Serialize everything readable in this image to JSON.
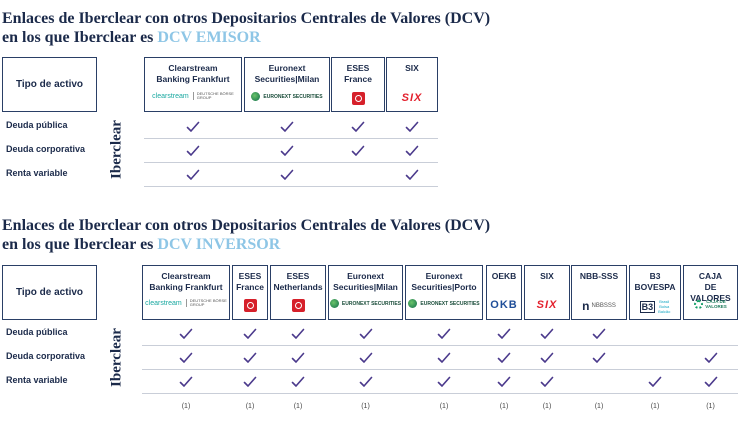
{
  "emisor": {
    "title_line1": "Enlaces de Iberclear con otros Depositarios Centrales de Valores (DCV)",
    "title_line2_prefix": "en los que Iberclear es",
    "title_line2_accent": "DCV EMISOR",
    "type_header": "Tipo de activo",
    "vertical_label": "Iberclear",
    "columns": [
      {
        "name": "Clearstream\nBanking Frankfurt",
        "logo": "clearstream-logo",
        "logo_text": "clearstream",
        "logo_sub": "DEUTSCHE BÖRSE\nGROUP"
      },
      {
        "name": "Euronext\nSecurities|Milan",
        "logo": "euronext-logo",
        "logo_text": "EURONEXT SECURITIES"
      },
      {
        "name": "ESES\nFrance",
        "logo": "eses-logo"
      },
      {
        "name": "SIX",
        "logo": "six-logo",
        "logo_text": "SIX"
      }
    ],
    "rows": [
      {
        "label": "Deuda pública",
        "checks": [
          true,
          true,
          true,
          true
        ]
      },
      {
        "label": "Deuda corporativa",
        "checks": [
          true,
          true,
          true,
          true
        ]
      },
      {
        "label": "Renta variable",
        "checks": [
          true,
          true,
          false,
          true
        ]
      }
    ]
  },
  "inversor": {
    "title_line1": "Enlaces de Iberclear con otros Depositarios Centrales de Valores (DCV)",
    "title_line2_prefix": "en los que Iberclear es",
    "title_line2_accent": "DCV INVERSOR",
    "type_header": "Tipo de activo",
    "vertical_label": "Iberclear",
    "columns": [
      {
        "name": "Clearstream\nBanking Frankfurt",
        "logo": "clearstream-logo",
        "logo_text": "clearstream",
        "logo_sub": "DEUTSCHE BÖRSE\nGROUP"
      },
      {
        "name": "ESES\nFrance",
        "logo": "eses-logo"
      },
      {
        "name": "ESES\nNetherlands",
        "logo": "eses-logo"
      },
      {
        "name": "Euronext\nSecurities|Milan",
        "logo": "euronext-logo",
        "logo_text": "EURONEXT SECURITIES"
      },
      {
        "name": "Euronext\nSecurities|Porto",
        "logo": "euronext-logo",
        "logo_text": "EURONEXT SECURITIES"
      },
      {
        "name": "OEKB",
        "logo": "oekb-logo",
        "logo_text": "OKB"
      },
      {
        "name": "SIX",
        "logo": "six-logo",
        "logo_text": "SIX"
      },
      {
        "name": "NBB-SSS",
        "logo": "nbb-logo",
        "logo_text": "NBBSSS"
      },
      {
        "name": "B3\nBOVESPA",
        "logo": "b3-logo",
        "logo_text": "B3",
        "logo_sub": "Brasil\nBolsa\nBalcão"
      },
      {
        "name": "CAJA\nDE VALORES",
        "logo": "caja-logo",
        "logo_text": "CAJA DE\nVALORES"
      }
    ],
    "rows": [
      {
        "label": "Deuda pública",
        "checks": [
          true,
          true,
          true,
          true,
          true,
          true,
          true,
          true,
          false,
          false
        ]
      },
      {
        "label": "Deuda corporativa",
        "checks": [
          true,
          true,
          true,
          true,
          true,
          true,
          true,
          true,
          false,
          true
        ]
      },
      {
        "label": "Renta variable",
        "checks": [
          true,
          true,
          true,
          true,
          true,
          true,
          true,
          false,
          true,
          true
        ]
      }
    ],
    "notes": [
      "(1)",
      "(1)",
      "(1)",
      "(1)",
      "(1)",
      "(1)",
      "(1)",
      "(1)",
      "(1)",
      "(1)"
    ]
  },
  "colors": {
    "navy": "#1b2a4a",
    "accent": "#8ec6e6",
    "check": "#4b3a8c",
    "divider": "#c9ced8"
  }
}
